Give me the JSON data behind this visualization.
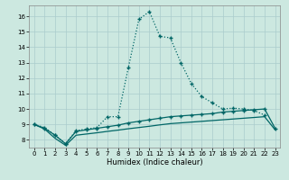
{
  "xlabel": "Humidex (Indice chaleur)",
  "bg_color": "#cce8e0",
  "grid_color": "#aacccc",
  "line_color": "#006666",
  "xlim": [
    -0.5,
    23.5
  ],
  "ylim": [
    7.5,
    16.7
  ],
  "xticks": [
    0,
    1,
    2,
    3,
    4,
    5,
    6,
    7,
    8,
    9,
    10,
    11,
    12,
    13,
    14,
    15,
    16,
    17,
    18,
    19,
    20,
    21,
    22,
    23
  ],
  "yticks": [
    8,
    9,
    10,
    11,
    12,
    13,
    14,
    15,
    16
  ],
  "series1_x": [
    0,
    1,
    2,
    3,
    4,
    5,
    6,
    7,
    8,
    9,
    10,
    11,
    12,
    13,
    14,
    15,
    16,
    17,
    18,
    19,
    20,
    21,
    22
  ],
  "series1_y": [
    9.0,
    8.8,
    8.3,
    7.75,
    8.6,
    8.7,
    8.8,
    9.5,
    9.5,
    12.7,
    15.8,
    16.3,
    14.7,
    14.6,
    13.0,
    11.65,
    10.8,
    10.4,
    10.0,
    10.05,
    10.0,
    9.9,
    9.6
  ],
  "series2_x": [
    0,
    1,
    2,
    3,
    4,
    5,
    6,
    7,
    8,
    9,
    10,
    11,
    12,
    13,
    14,
    15,
    16,
    17,
    18,
    19,
    20,
    21,
    22,
    23
  ],
  "series2_y": [
    9.0,
    8.75,
    8.3,
    7.75,
    8.55,
    8.65,
    8.75,
    8.85,
    8.95,
    9.1,
    9.2,
    9.3,
    9.4,
    9.5,
    9.55,
    9.6,
    9.65,
    9.7,
    9.8,
    9.85,
    9.9,
    9.95,
    10.0,
    8.75
  ],
  "series3_x": [
    0,
    1,
    2,
    3,
    4,
    5,
    6,
    7,
    8,
    9,
    10,
    11,
    12,
    13,
    14,
    15,
    16,
    17,
    18,
    19,
    20,
    21,
    22,
    23
  ],
  "series3_y": [
    9.0,
    8.7,
    8.1,
    7.65,
    8.3,
    8.38,
    8.46,
    8.55,
    8.63,
    8.72,
    8.8,
    8.88,
    8.97,
    9.05,
    9.1,
    9.15,
    9.2,
    9.25,
    9.3,
    9.35,
    9.4,
    9.45,
    9.5,
    8.65
  ]
}
